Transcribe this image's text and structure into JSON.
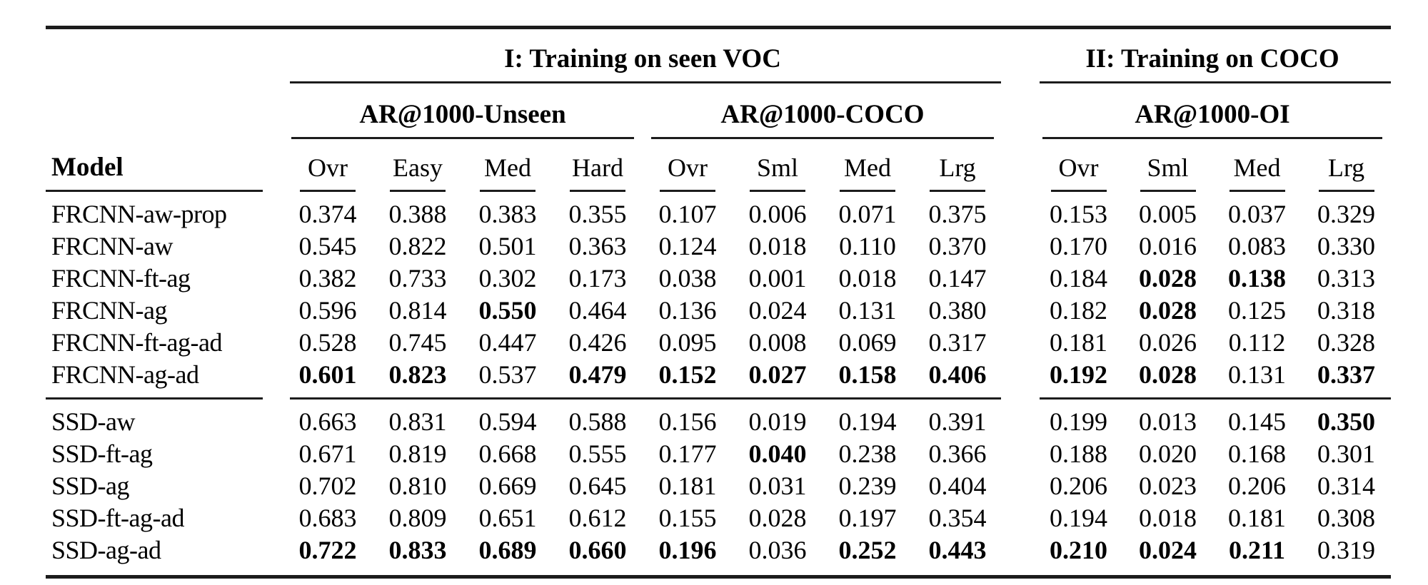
{
  "table": {
    "sections": [
      {
        "label": "I: Training on seen VOC"
      },
      {
        "label": "II: Training on COCO"
      }
    ],
    "groups": [
      {
        "label": "AR@1000-Unseen",
        "columns": [
          "Ovr",
          "Easy",
          "Med",
          "Hard"
        ]
      },
      {
        "label": "AR@1000-COCO",
        "columns": [
          "Ovr",
          "Sml",
          "Med",
          "Lrg"
        ]
      },
      {
        "label": "AR@1000-OI",
        "columns": [
          "Ovr",
          "Sml",
          "Med",
          "Lrg"
        ]
      }
    ],
    "model_header": "Model",
    "rule_color": "#1c1c1c",
    "text_color": "#000000",
    "row_groups": [
      {
        "rows": [
          {
            "model": "FRCNN-aw-prop",
            "values": [
              "0.374",
              "0.388",
              "0.383",
              "0.355",
              "0.107",
              "0.006",
              "0.071",
              "0.375",
              "0.153",
              "0.005",
              "0.037",
              "0.329"
            ],
            "bold": []
          },
          {
            "model": "FRCNN-aw",
            "values": [
              "0.545",
              "0.822",
              "0.501",
              "0.363",
              "0.124",
              "0.018",
              "0.110",
              "0.370",
              "0.170",
              "0.016",
              "0.083",
              "0.330"
            ],
            "bold": []
          },
          {
            "model": "FRCNN-ft-ag",
            "values": [
              "0.382",
              "0.733",
              "0.302",
              "0.173",
              "0.038",
              "0.001",
              "0.018",
              "0.147",
              "0.184",
              "0.028",
              "0.138",
              "0.313"
            ],
            "bold": [
              9,
              10
            ]
          },
          {
            "model": "FRCNN-ag",
            "values": [
              "0.596",
              "0.814",
              "0.550",
              "0.464",
              "0.136",
              "0.024",
              "0.131",
              "0.380",
              "0.182",
              "0.028",
              "0.125",
              "0.318"
            ],
            "bold": [
              2,
              9
            ]
          },
          {
            "model": "FRCNN-ft-ag-ad",
            "values": [
              "0.528",
              "0.745",
              "0.447",
              "0.426",
              "0.095",
              "0.008",
              "0.069",
              "0.317",
              "0.181",
              "0.026",
              "0.112",
              "0.328"
            ],
            "bold": []
          },
          {
            "model": "FRCNN-ag-ad",
            "values": [
              "0.601",
              "0.823",
              "0.537",
              "0.479",
              "0.152",
              "0.027",
              "0.158",
              "0.406",
              "0.192",
              "0.028",
              "0.131",
              "0.337"
            ],
            "bold": [
              0,
              1,
              3,
              4,
              5,
              6,
              7,
              8,
              9,
              11
            ]
          }
        ]
      },
      {
        "rows": [
          {
            "model": "SSD-aw",
            "values": [
              "0.663",
              "0.831",
              "0.594",
              "0.588",
              "0.156",
              "0.019",
              "0.194",
              "0.391",
              "0.199",
              "0.013",
              "0.145",
              "0.350"
            ],
            "bold": [
              11
            ]
          },
          {
            "model": "SSD-ft-ag",
            "values": [
              "0.671",
              "0.819",
              "0.668",
              "0.555",
              "0.177",
              "0.040",
              "0.238",
              "0.366",
              "0.188",
              "0.020",
              "0.168",
              "0.301"
            ],
            "bold": [
              5
            ]
          },
          {
            "model": "SSD-ag",
            "values": [
              "0.702",
              "0.810",
              "0.669",
              "0.645",
              "0.181",
              "0.031",
              "0.239",
              "0.404",
              "0.206",
              "0.023",
              "0.206",
              "0.314"
            ],
            "bold": []
          },
          {
            "model": "SSD-ft-ag-ad",
            "values": [
              "0.683",
              "0.809",
              "0.651",
              "0.612",
              "0.155",
              "0.028",
              "0.197",
              "0.354",
              "0.194",
              "0.018",
              "0.181",
              "0.308"
            ],
            "bold": []
          },
          {
            "model": "SSD-ag-ad",
            "values": [
              "0.722",
              "0.833",
              "0.689",
              "0.660",
              "0.196",
              "0.036",
              "0.252",
              "0.443",
              "0.210",
              "0.024",
              "0.211",
              "0.319"
            ],
            "bold": [
              0,
              1,
              2,
              3,
              4,
              6,
              7,
              8,
              9,
              10
            ]
          }
        ]
      }
    ]
  }
}
